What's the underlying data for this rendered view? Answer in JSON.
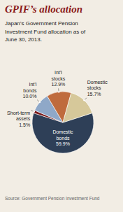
{
  "chart_data": {
    "type": "pie",
    "title": "GPIF’s allocation",
    "subtitle": "Japan’s Government Pension\nInvestment Fund allocation as of\nJune 30, 2013.",
    "annotations": [
      "Source: Government Pension Investment Fund"
    ],
    "categories": [
      "Domestic\nbonds",
      "Short-term\nassets",
      "Int’l\nbonds",
      "Int’l\nstocks",
      "Domestic\nstocks"
    ],
    "values": [
      59.9,
      1.5,
      10.0,
      12.9,
      15.7
    ],
    "value_labels": [
      "59.9%",
      "1.5%",
      "10.0%",
      "12.9%",
      "15.7%"
    ],
    "colors": [
      "#2e3f57",
      "#7a1a1a",
      "#8fa8c8",
      "#bf6b3d",
      "#d6c89a"
    ],
    "data_labels": true
  }
}
